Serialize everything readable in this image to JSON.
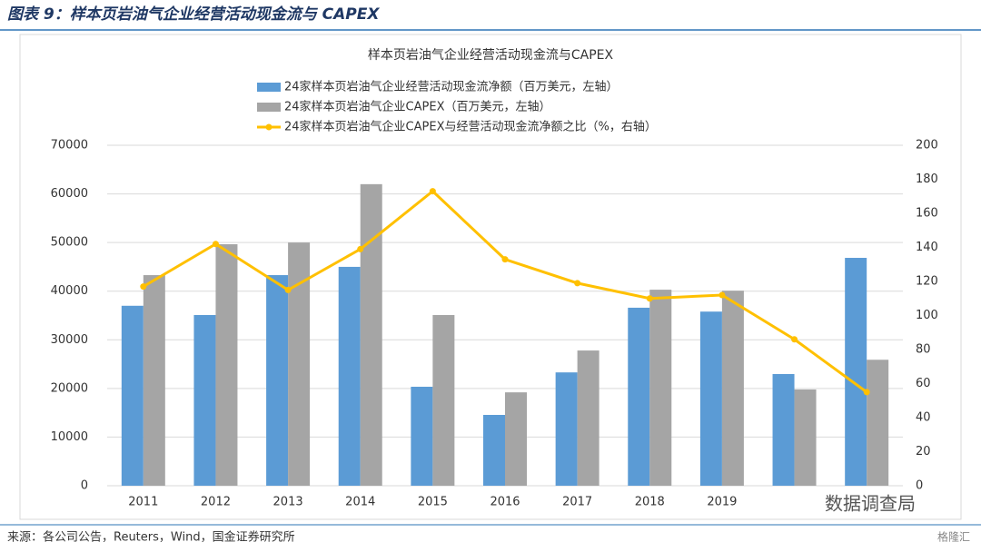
{
  "header": "图表 9：样本页岩油气企业经营活动现金流与 CAPEX",
  "source": "来源：各公司公告，Reuters，Wind，国金证券研究所",
  "watermark": "数据调查局",
  "watermark_brand": "格隆汇",
  "chart_data": {
    "type": "bar_line",
    "title": "样本页岩油气企业经营活动现金流与CAPEX",
    "categories": [
      "2011",
      "2012",
      "2013",
      "2014",
      "2015",
      "2016",
      "2017",
      "2018",
      "2019",
      null,
      null
    ],
    "series": [
      {
        "name": "24家样本页岩油气企业经营活动现金流净额（百万美元，左轴）",
        "type": "bar",
        "color": "#5b9bd5",
        "values": [
          37000,
          35100,
          43300,
          45000,
          20350,
          14560,
          23300,
          36600,
          35800,
          22960,
          46850
        ]
      },
      {
        "name": "24家样本页岩油气企业CAPEX（百万美元，左轴）",
        "type": "bar",
        "color": "#a5a5a5",
        "values": [
          43300,
          49650,
          50000,
          62000,
          35100,
          19200,
          27800,
          40300,
          40100,
          19790,
          25900
        ]
      },
      {
        "name": "24家样本页岩油气企业CAPEX与经营活动现金流净额之比（%，右轴）",
        "type": "line",
        "axis": "y2",
        "color": "#ffc000",
        "values": [
          117,
          142,
          115,
          139,
          173,
          133,
          119,
          110,
          112,
          86,
          55
        ]
      }
    ],
    "ylim": [
      0,
      70000
    ],
    "yticks": [
      0,
      10000,
      20000,
      30000,
      40000,
      50000,
      60000,
      70000
    ],
    "y2lim": [
      0,
      200
    ],
    "y2ticks": [
      0,
      20,
      40,
      60,
      80,
      100,
      120,
      140,
      160,
      180,
      200
    ],
    "grid": true
  }
}
